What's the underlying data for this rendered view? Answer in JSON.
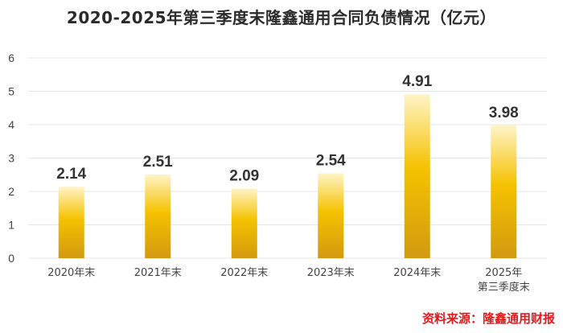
{
  "title": "2020-2025年第三季度末隆鑫通用合同负债情况（亿元）",
  "source": "资料来源：隆鑫通用财报",
  "colors": {
    "bar_top": "#fff4c8",
    "bar_mid": "#f5c200",
    "bar_bottom": "#d29a10",
    "grid": "#e6e6e6",
    "axis_text": "#444444",
    "value_text": "#333333",
    "source_text": "#e8181b"
  },
  "chart_data": {
    "type": "bar",
    "categories": [
      "2020年末",
      "2021年末",
      "2022年末",
      "2023年末",
      "2024年末",
      "2025年\n第三季度末"
    ],
    "values": [
      2.14,
      2.51,
      2.09,
      2.54,
      4.91,
      3.98
    ],
    "data_labels": [
      "2.14",
      "2.51",
      "2.09",
      "2.54",
      "4.91",
      "3.98"
    ],
    "y_ticks": [
      "0",
      "1",
      "2",
      "3",
      "4",
      "5",
      "6"
    ],
    "ylim": [
      0,
      6
    ],
    "grid": true,
    "legend": "none",
    "xlabel": "",
    "ylabel": ""
  }
}
